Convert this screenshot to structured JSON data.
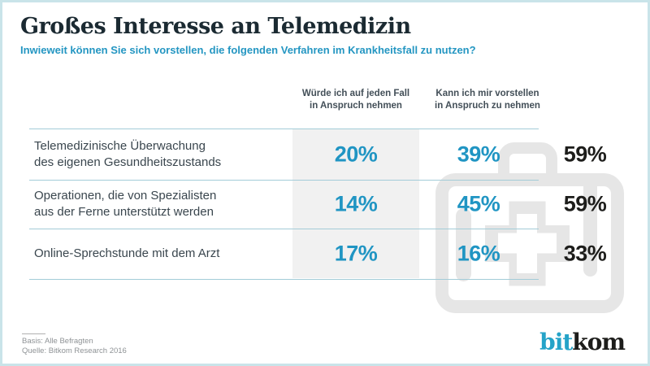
{
  "header": {
    "title": "Großes Interesse an Telemedizin",
    "subtitle": "Inwieweit können Sie sich vorstellen, die folgenden Verfahren im Krankheitsfall zu nutzen?"
  },
  "columns": [
    {
      "lines": [
        "Würde ich auf jeden Fall",
        "in Anspruch nehmen"
      ]
    },
    {
      "lines": [
        "Kann ich mir vorstellen",
        "in Anspruch zu nehmen"
      ]
    }
  ],
  "rows": [
    {
      "label_lines": [
        "Telemedizinische Überwachung",
        "des eigenen Gesundheitszustands"
      ],
      "definitely": "20%",
      "conceivably": "39%",
      "total": "59%"
    },
    {
      "label_lines": [
        "Operationen, die von Spezialisten",
        "aus der Ferne unterstützt werden"
      ],
      "definitely": "14%",
      "conceivably": "45%",
      "total": "59%"
    },
    {
      "label_lines": [
        "Online-Sprechstunde mit dem Arzt"
      ],
      "definitely": "17%",
      "conceivably": "16%",
      "total": "33%"
    }
  ],
  "footer": {
    "basis": "Basis: Alle Befragten",
    "source": "Quelle: Bitkom Research 2016"
  },
  "logo": {
    "part1": "bit",
    "part2": "kom"
  },
  "icons": {
    "watermark": "first-aid-case-icon"
  },
  "colors": {
    "accent_blue": "#2095C3",
    "subtitle_blue": "#2496C2",
    "title_dark": "#1B2A32",
    "label_dark": "#3A464E",
    "total_black": "#1D1D1B",
    "separator_teal": "#A3CCD8",
    "band_gray": "#F1F1F1",
    "watermark_gray": "#E6E6E6",
    "frame_border": "#C9E4E9",
    "logo_blue": "#25A3C8"
  },
  "chart_data": {
    "type": "table",
    "title": "Großes Interesse an Telemedizin",
    "subtitle": "Inwieweit können Sie sich vorstellen, die folgenden Verfahren im Krankheitsfall zu nutzen?",
    "categories": [
      "Telemedizinische Überwachung des eigenen Gesundheitszustands",
      "Operationen, die von Spezialisten aus der Ferne unterstützt werden",
      "Online-Sprechstunde mit dem Arzt"
    ],
    "series": [
      {
        "name": "Würde ich auf jeden Fall in Anspruch nehmen",
        "values": [
          20,
          14,
          17
        ],
        "unit": "%"
      },
      {
        "name": "Kann ich mir vorstellen in Anspruch zu nehmen",
        "values": [
          39,
          45,
          16
        ],
        "unit": "%"
      }
    ],
    "totals": [
      59,
      59,
      33
    ],
    "basis": "Basis: Alle Befragten",
    "source": "Quelle: Bitkom Research 2016"
  }
}
